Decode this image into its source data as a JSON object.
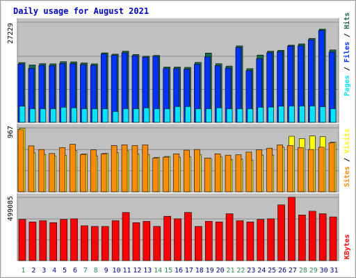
{
  "title": "Daily usage for August 2021",
  "colors": {
    "title": "#0000CC",
    "panel_bg": "#C0C0C0",
    "frame": "#888888",
    "hits": "#1A6A4A",
    "files": "#0033FF",
    "pages": "#00E5FF",
    "visits": "#FFFF00",
    "sites": "#FF8C00",
    "kbytes": "#FF0000",
    "weekend_label": "#2E8B57",
    "weekday_label": "#000080"
  },
  "chart_data": [
    {
      "type": "bar",
      "name": "hits-files-pages",
      "ylabel_parts": [
        "Pages",
        "Files",
        "Hits"
      ],
      "ymax_label": "27229",
      "ylim": [
        0,
        27229
      ],
      "grid": true,
      "categories": [
        "1",
        "2",
        "3",
        "4",
        "5",
        "6",
        "7",
        "8",
        "9",
        "10",
        "11",
        "12",
        "13",
        "14",
        "15",
        "16",
        "17",
        "18",
        "19",
        "20",
        "21",
        "22",
        "23",
        "24",
        "25",
        "26",
        "27",
        "28",
        "29",
        "30",
        "31"
      ],
      "series": [
        {
          "name": "Hits",
          "values": [
            16250,
            15600,
            15950,
            15900,
            16500,
            16450,
            16150,
            15900,
            18900,
            18550,
            19350,
            18450,
            18000,
            18200,
            15050,
            15050,
            14950,
            16300,
            18850,
            15950,
            15300,
            20800,
            14600,
            18300,
            19350,
            19600,
            21000,
            21350,
            22850,
            25350,
            19700
          ]
        },
        {
          "name": "Files",
          "values": [
            15850,
            14700,
            15500,
            15400,
            16000,
            15950,
            15700,
            15500,
            18600,
            18200,
            18900,
            18100,
            17700,
            17950,
            14600,
            14600,
            14450,
            15800,
            17800,
            15400,
            14750,
            20350,
            14050,
            17300,
            18950,
            19200,
            20750,
            20850,
            22450,
            25000,
            19100
          ]
        },
        {
          "name": "Pages",
          "values": [
            4400,
            3700,
            3700,
            3700,
            4100,
            3950,
            3700,
            3700,
            3700,
            2950,
            3700,
            3700,
            3950,
            3700,
            3700,
            4300,
            4300,
            3700,
            3700,
            3950,
            3700,
            3700,
            3700,
            4100,
            4150,
            4400,
            4450,
            4450,
            4450,
            4250,
            3700
          ]
        }
      ]
    },
    {
      "type": "bar",
      "name": "visits-sites",
      "ylabel_parts": [
        "Sites",
        "Visits"
      ],
      "ymax_label": "967",
      "ylim": [
        0,
        967
      ],
      "grid": true,
      "categories": [
        "1",
        "2",
        "3",
        "4",
        "5",
        "6",
        "7",
        "8",
        "9",
        "10",
        "11",
        "12",
        "13",
        "14",
        "15",
        "16",
        "17",
        "18",
        "19",
        "20",
        "21",
        "22",
        "23",
        "24",
        "25",
        "26",
        "27",
        "28",
        "29",
        "30",
        "31"
      ],
      "series": [
        {
          "name": "Visits",
          "values": [
            960,
            590,
            565,
            545,
            550,
            625,
            575,
            545,
            580,
            595,
            620,
            570,
            565,
            520,
            535,
            525,
            530,
            560,
            505,
            530,
            490,
            495,
            480,
            555,
            555,
            675,
            840,
            805,
            845,
            835,
            750
          ]
        },
        {
          "name": "Sites",
          "values": [
            940,
            695,
            640,
            580,
            670,
            720,
            565,
            635,
            575,
            700,
            710,
            700,
            710,
            510,
            525,
            575,
            630,
            640,
            510,
            575,
            555,
            560,
            600,
            635,
            660,
            710,
            700,
            670,
            640,
            675,
            740
          ]
        }
      ]
    },
    {
      "type": "bar",
      "name": "kbytes",
      "ylabel_parts": [
        "KBytes"
      ],
      "ymax_label": "499085",
      "ylim": [
        0,
        499085
      ],
      "grid": true,
      "categories": [
        "1",
        "2",
        "3",
        "4",
        "5",
        "6",
        "7",
        "8",
        "9",
        "10",
        "11",
        "12",
        "13",
        "14",
        "15",
        "16",
        "17",
        "18",
        "19",
        "20",
        "21",
        "22",
        "23",
        "24",
        "25",
        "26",
        "27",
        "28",
        "29",
        "30",
        "31"
      ],
      "series": [
        {
          "name": "KBytes",
          "values": [
            325000,
            305000,
            315000,
            300000,
            325000,
            330000,
            275000,
            270000,
            270000,
            315000,
            380000,
            300000,
            310000,
            270000,
            350000,
            330000,
            380000,
            270000,
            310000,
            305000,
            370000,
            315000,
            305000,
            325000,
            330000,
            440000,
            500000,
            360000,
            390000,
            370000,
            345000
          ]
        }
      ]
    }
  ],
  "x_labels": {
    "days": [
      "1",
      "2",
      "3",
      "4",
      "5",
      "6",
      "7",
      "8",
      "9",
      "10",
      "11",
      "12",
      "13",
      "14",
      "15",
      "16",
      "17",
      "18",
      "19",
      "20",
      "21",
      "22",
      "23",
      "24",
      "25",
      "26",
      "27",
      "28",
      "29",
      "30",
      "31"
    ],
    "weekend": [
      1,
      7,
      8,
      14,
      15,
      21,
      22,
      28,
      29
    ]
  }
}
